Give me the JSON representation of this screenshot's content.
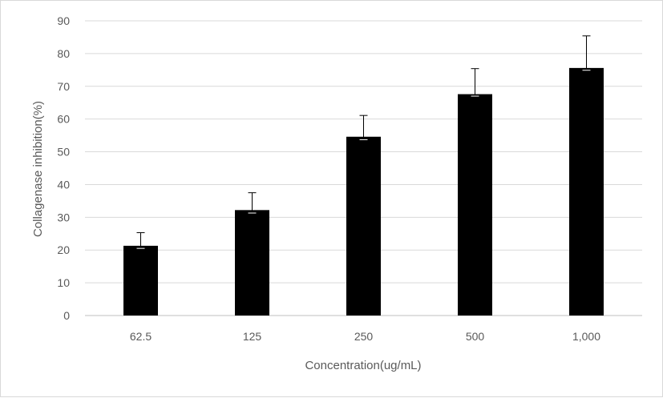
{
  "chart_data": {
    "type": "bar",
    "categories": [
      "62.5",
      "125",
      "250",
      "500",
      "1,000"
    ],
    "values": [
      21.3,
      32.2,
      54.6,
      67.6,
      75.6
    ],
    "error_upper": [
      4.0,
      5.3,
      6.5,
      7.8,
      9.8
    ],
    "error_lower": [
      0.8,
      0.9,
      0.9,
      0.6,
      0.7
    ],
    "title": "",
    "xlabel": "Concentration(ug/mL)",
    "ylabel": "Collagenase inhibition(%)",
    "ylim": [
      0,
      90
    ],
    "yticks": [
      "0",
      "10",
      "20",
      "30",
      "40",
      "50",
      "60",
      "70",
      "80",
      "90"
    ],
    "grid": true,
    "legend": "none",
    "colors": {
      "bar": "#000000",
      "grid": "#d9d9d9",
      "error_bar": "#000000",
      "text": "#595959"
    }
  }
}
